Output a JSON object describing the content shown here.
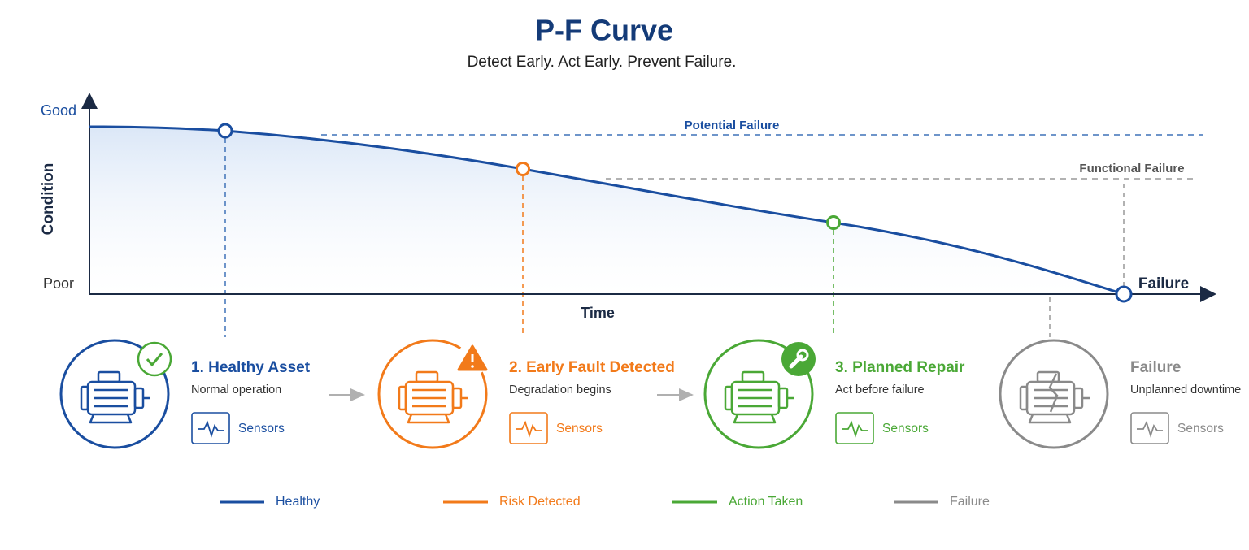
{
  "header": {
    "title": "P-F Curve",
    "subtitle": "Detect Early. Act Early. Prevent Failure."
  },
  "axes": {
    "y_label": "Condition",
    "y_top": "Good",
    "y_bottom": "Poor",
    "x_label": "Time",
    "end_label": "Failure"
  },
  "reference_lines": [
    {
      "label": "Potential Failure"
    },
    {
      "label": "Functional Failure"
    }
  ],
  "stages": [
    {
      "title": "1. Healthy Asset",
      "description": "Normal operation",
      "sensor": "Sensors",
      "color": "#1a4ea0"
    },
    {
      "title": "2. Early Fault Detected",
      "description": "Degradation begins",
      "sensor": "Sensors",
      "color": "#f27a1a"
    },
    {
      "title": "3. Planned Repair",
      "description": "Act before failure",
      "sensor": "Sensors",
      "color": "#4aa836"
    },
    {
      "title": "Failure",
      "description": "Unplanned downtime",
      "sensor": "Sensors",
      "color": "#8a8a8a"
    }
  ],
  "legend": [
    {
      "label": "Healthy",
      "color": "#1a4ea0"
    },
    {
      "label": "Risk Detected",
      "color": "#f27a1a"
    },
    {
      "label": "Action Taken",
      "color": "#4aa836"
    },
    {
      "label": "Failure",
      "color": "#8a8a8a"
    }
  ]
}
